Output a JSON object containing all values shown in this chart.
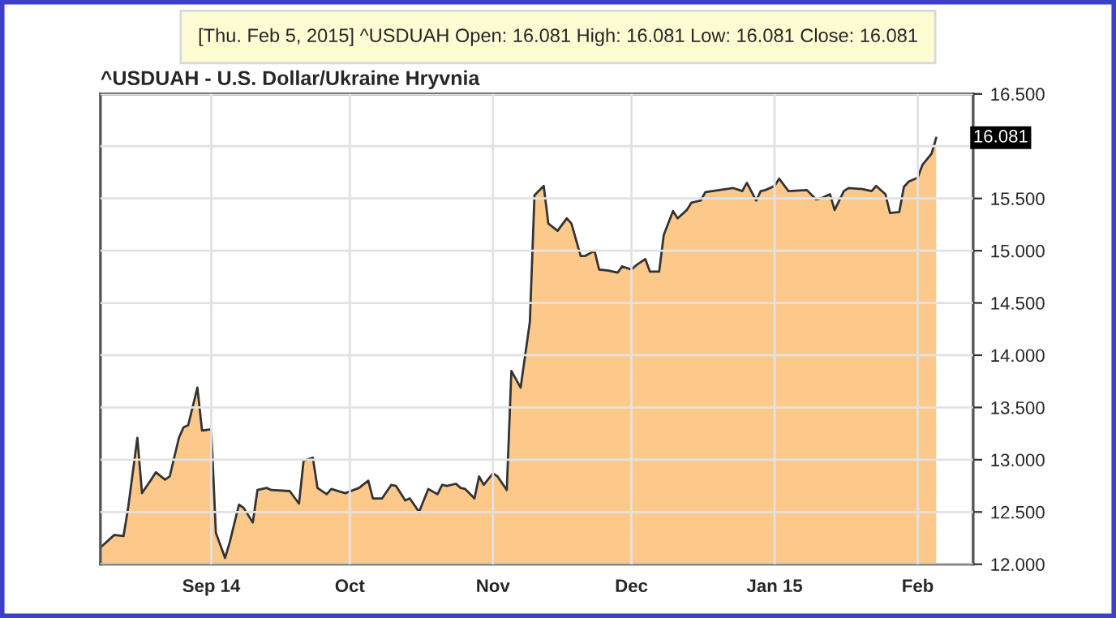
{
  "chart_data": {
    "type": "area",
    "title": "[Thu. Feb 5, 2015] ^USDUAH Open: 16.081 High: 16.081 Low: 16.081 Close: 16.081",
    "subtitle": "^USDUAH - U.S. Dollar/Ukraine Hryvnia",
    "x": [
      "2014-08-08",
      "2014-08-11",
      "2014-08-13",
      "2014-08-14",
      "2014-08-16",
      "2014-08-17",
      "2014-08-19",
      "2014-08-20",
      "2014-08-22",
      "2014-08-23",
      "2014-08-25",
      "2014-08-26",
      "2014-08-27",
      "2014-08-29",
      "2014-08-30",
      "2014-09-01",
      "2014-09-02",
      "2014-09-04",
      "2014-09-05",
      "2014-09-07",
      "2014-09-08",
      "2014-09-10",
      "2014-09-11",
      "2014-09-13",
      "2014-09-14",
      "2014-09-18",
      "2014-09-20",
      "2014-09-21",
      "2014-09-23",
      "2014-09-24",
      "2014-09-26",
      "2014-09-27",
      "2014-09-30",
      "2014-10-03",
      "2014-10-05",
      "2014-10-06",
      "2014-10-08",
      "2014-10-10",
      "2014-10-11",
      "2014-10-13",
      "2014-10-14",
      "2014-10-16",
      "2014-10-18",
      "2014-10-20",
      "2014-10-21",
      "2014-10-22",
      "2014-10-24",
      "2014-10-25",
      "2014-10-26",
      "2014-10-28",
      "2014-10-29",
      "2014-10-30",
      "2014-11-01",
      "2014-11-02",
      "2014-11-04",
      "2014-11-05",
      "2014-11-07",
      "2014-11-09",
      "2014-11-10",
      "2014-11-12",
      "2014-11-13",
      "2014-11-15",
      "2014-11-17",
      "2014-11-18",
      "2014-11-20",
      "2014-11-21",
      "2014-11-23",
      "2014-11-24",
      "2014-11-26",
      "2014-11-28",
      "2014-11-29",
      "2014-12-01",
      "2014-12-02",
      "2014-12-04",
      "2014-12-05",
      "2014-12-07",
      "2014-12-08",
      "2014-12-10",
      "2014-12-11",
      "2014-12-13",
      "2014-12-14",
      "2014-12-16",
      "2014-12-17",
      "2014-12-23",
      "2014-12-25",
      "2014-12-26",
      "2014-12-28",
      "2014-12-29",
      "2014-12-30",
      "2015-01-01",
      "2015-01-02",
      "2015-01-04",
      "2015-01-08",
      "2015-01-10",
      "2015-01-11",
      "2015-01-13",
      "2015-01-14",
      "2015-01-16",
      "2015-01-17",
      "2015-01-20",
      "2015-01-22",
      "2015-01-23",
      "2015-01-25",
      "2015-01-26",
      "2015-01-28",
      "2015-01-29",
      "2015-01-30",
      "2015-02-01",
      "2015-02-02",
      "2015-02-04",
      "2015-02-05"
    ],
    "series": [
      {
        "color": "#fdc98a",
        "values": [
          12.16,
          12.28,
          12.27,
          12.54,
          13.21,
          12.68,
          12.81,
          12.88,
          12.81,
          12.84,
          13.21,
          13.31,
          13.33,
          13.69,
          13.28,
          13.29,
          12.3,
          12.06,
          12.21,
          12.57,
          12.54,
          12.4,
          12.71,
          12.73,
          12.71,
          12.7,
          12.58,
          12.99,
          13.02,
          12.73,
          12.67,
          12.72,
          12.68,
          12.73,
          12.8,
          12.63,
          12.63,
          12.76,
          12.75,
          12.61,
          12.63,
          12.5,
          12.72,
          12.67,
          12.76,
          12.75,
          12.77,
          12.73,
          12.72,
          12.63,
          12.84,
          12.76,
          12.87,
          12.84,
          12.71,
          13.85,
          13.69,
          14.32,
          15.53,
          15.62,
          15.26,
          15.19,
          15.31,
          15.26,
          14.95,
          14.95,
          15.0,
          14.82,
          14.81,
          14.79,
          14.85,
          14.82,
          14.86,
          14.92,
          14.8,
          14.8,
          15.15,
          15.38,
          15.31,
          15.39,
          15.46,
          15.48,
          15.56,
          15.6,
          15.57,
          15.65,
          15.48,
          15.57,
          15.58,
          15.62,
          15.69,
          15.57,
          15.58,
          15.49,
          15.5,
          15.54,
          15.39,
          15.57,
          15.6,
          15.59,
          15.57,
          15.62,
          15.54,
          15.36,
          15.37,
          15.61,
          15.66,
          15.7,
          15.82,
          15.93,
          16.081
        ]
      }
    ],
    "xlim": [
      "2014-08-08",
      "2015-02-13"
    ],
    "xticks": [
      {
        "value": "2014-09-01",
        "label": "Sep 14"
      },
      {
        "value": "2014-10-01",
        "label": "Oct"
      },
      {
        "value": "2014-11-01",
        "label": "Nov"
      },
      {
        "value": "2014-12-01",
        "label": "Dec"
      },
      {
        "value": "2015-01-01",
        "label": "Jan 15"
      },
      {
        "value": "2015-02-01",
        "label": "Feb"
      }
    ],
    "ylim": [
      12,
      16.5
    ],
    "yticks": [
      {
        "value": 12,
        "label": "12.000"
      },
      {
        "value": 12.5,
        "label": "12.500"
      },
      {
        "value": 13,
        "label": "13.000"
      },
      {
        "value": 13.5,
        "label": "13.500"
      },
      {
        "value": 14,
        "label": "14.000"
      },
      {
        "value": 14.5,
        "label": "14.500"
      },
      {
        "value": 15,
        "label": "15.000"
      },
      {
        "value": 15.5,
        "label": "15.500"
      },
      {
        "value": 16,
        "label": null
      },
      {
        "value": 16.5,
        "label": "16.500"
      }
    ],
    "annotations": [
      {
        "text": "16.081",
        "x": "2015-02-05",
        "y": 16.081
      }
    ],
    "grid": true
  }
}
